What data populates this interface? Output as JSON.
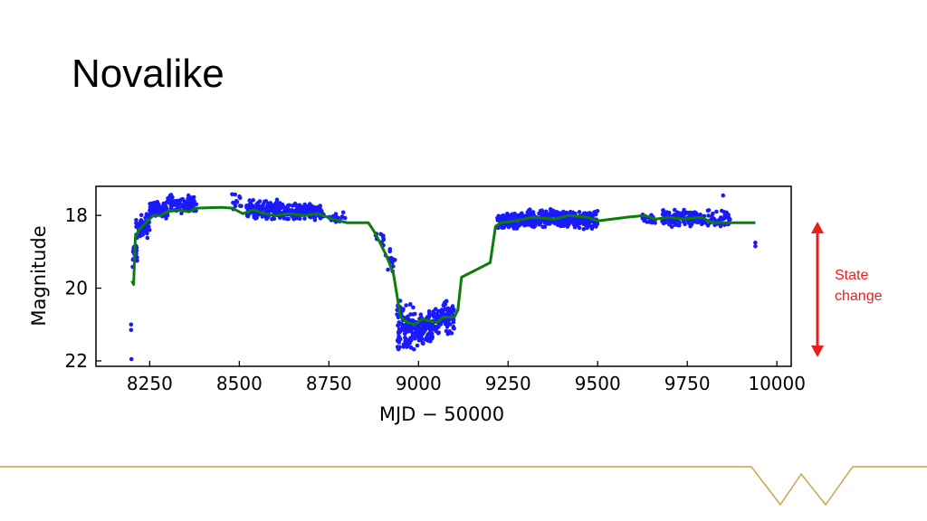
{
  "slide": {
    "title": "Novalike",
    "annotation": [
      "State",
      "change"
    ],
    "annotation_color": "#e8201a",
    "footer_color": "#c9a545"
  },
  "chart_data": {
    "type": "scatter",
    "xlabel": "MJD − 50000",
    "ylabel": "Magnitude",
    "xlim": [
      8100,
      10040
    ],
    "ylim": [
      22.15,
      17.2
    ],
    "y_inverted": true,
    "x_ticks": [
      8250,
      8500,
      8750,
      9000,
      9250,
      9500,
      9750,
      10000
    ],
    "x_tick_labels": [
      "8250",
      "8500",
      "8750",
      "9000",
      "9250",
      "9500",
      "9750",
      "10000"
    ],
    "y_ticks": [
      18,
      20,
      22
    ],
    "y_tick_labels": [
      "18",
      "20",
      "22"
    ],
    "grid": false,
    "legend": "none",
    "series": [
      {
        "kind": "points",
        "color": "#1a1aff",
        "clusters": [
          {
            "x_range": [
              8200,
              8215
            ],
            "y_range": [
              18.3,
              19.7
            ],
            "count": 20
          },
          {
            "x_range": [
              8212,
              8250
            ],
            "y_range": [
              17.9,
              18.7
            ],
            "count": 60
          },
          {
            "x_range": [
              8250,
              8300
            ],
            "y_range": [
              17.6,
              18.1
            ],
            "count": 90
          },
          {
            "x_range": [
              8300,
              8380
            ],
            "y_range": [
              17.4,
              17.95
            ],
            "count": 90
          },
          {
            "x_range": [
              8480,
              8510
            ],
            "y_range": [
              17.4,
              17.9
            ],
            "count": 12
          },
          {
            "x_range": [
              8520,
              8620
            ],
            "y_range": [
              17.55,
              18.15
            ],
            "count": 150
          },
          {
            "x_range": [
              8620,
              8730
            ],
            "y_range": [
              17.65,
              18.15
            ],
            "count": 170
          },
          {
            "x_range": [
              8730,
              8800
            ],
            "y_range": [
              17.9,
              18.2
            ],
            "count": 20
          },
          {
            "x_range": [
              8880,
              8905
            ],
            "y_range": [
              18.3,
              18.9
            ],
            "count": 10
          },
          {
            "x_range": [
              8905,
              8935
            ],
            "y_range": [
              18.9,
              19.7
            ],
            "count": 15
          },
          {
            "x_range": [
              8940,
              8990
            ],
            "y_range": [
              20.3,
              21.8
            ],
            "count": 110
          },
          {
            "x_range": [
              8990,
              9040
            ],
            "y_range": [
              20.6,
              21.6
            ],
            "count": 110
          },
          {
            "x_range": [
              9040,
              9100
            ],
            "y_range": [
              20.3,
              21.3
            ],
            "count": 100
          },
          {
            "x_range": [
              9220,
              9300
            ],
            "y_range": [
              17.9,
              18.4
            ],
            "count": 110
          },
          {
            "x_range": [
              9300,
              9400
            ],
            "y_range": [
              17.8,
              18.35
            ],
            "count": 170
          },
          {
            "x_range": [
              9400,
              9500
            ],
            "y_range": [
              17.85,
              18.4
            ],
            "count": 140
          },
          {
            "x_range": [
              9625,
              9660
            ],
            "y_range": [
              17.9,
              18.25
            ],
            "count": 25
          },
          {
            "x_range": [
              9680,
              9790
            ],
            "y_range": [
              17.8,
              18.35
            ],
            "count": 120
          },
          {
            "x_range": [
              9790,
              9870
            ],
            "y_range": [
              17.8,
              18.4
            ],
            "count": 50
          }
        ],
        "outliers": [
          {
            "x": 8198,
            "y": 21.0
          },
          {
            "x": 8198,
            "y": 21.15
          },
          {
            "x": 8199,
            "y": 21.95
          },
          {
            "x": 9940,
            "y": 18.75
          },
          {
            "x": 9940,
            "y": 18.85
          },
          {
            "x": 9850,
            "y": 17.45
          }
        ]
      },
      {
        "kind": "line",
        "color": "#0a7d0a",
        "points": [
          [
            8200,
            19.8
          ],
          [
            8205,
            19.9
          ],
          [
            8210,
            18.6
          ],
          [
            8220,
            18.4
          ],
          [
            8240,
            18.2
          ],
          [
            8260,
            18.0
          ],
          [
            8280,
            18.0
          ],
          [
            8300,
            17.9
          ],
          [
            8330,
            17.85
          ],
          [
            8360,
            17.9
          ],
          [
            8380,
            17.8
          ],
          [
            8450,
            17.78
          ],
          [
            8480,
            17.8
          ],
          [
            8510,
            17.95
          ],
          [
            8540,
            17.85
          ],
          [
            8570,
            17.95
          ],
          [
            8600,
            18.0
          ],
          [
            8640,
            17.95
          ],
          [
            8680,
            18.0
          ],
          [
            8720,
            17.95
          ],
          [
            8760,
            18.1
          ],
          [
            8800,
            18.2
          ],
          [
            8860,
            18.2
          ],
          [
            8880,
            18.5
          ],
          [
            8910,
            19.1
          ],
          [
            8930,
            19.6
          ],
          [
            8950,
            20.8
          ],
          [
            8970,
            20.95
          ],
          [
            8990,
            21.0
          ],
          [
            9010,
            20.85
          ],
          [
            9030,
            20.9
          ],
          [
            9050,
            20.95
          ],
          [
            9070,
            20.8
          ],
          [
            9100,
            20.8
          ],
          [
            9110,
            20.6
          ],
          [
            9120,
            19.7
          ],
          [
            9150,
            19.55
          ],
          [
            9180,
            19.4
          ],
          [
            9200,
            19.3
          ],
          [
            9215,
            18.3
          ],
          [
            9230,
            18.2
          ],
          [
            9270,
            18.15
          ],
          [
            9320,
            18.05
          ],
          [
            9380,
            18.1
          ],
          [
            9420,
            18.0
          ],
          [
            9470,
            18.05
          ],
          [
            9500,
            18.15
          ],
          [
            9580,
            18.05
          ],
          [
            9630,
            18.0
          ],
          [
            9660,
            18.1
          ],
          [
            9700,
            18.05
          ],
          [
            9740,
            18.1
          ],
          [
            9790,
            18.05
          ],
          [
            9820,
            18.2
          ],
          [
            9870,
            18.2
          ],
          [
            9940,
            18.2
          ]
        ]
      }
    ]
  }
}
